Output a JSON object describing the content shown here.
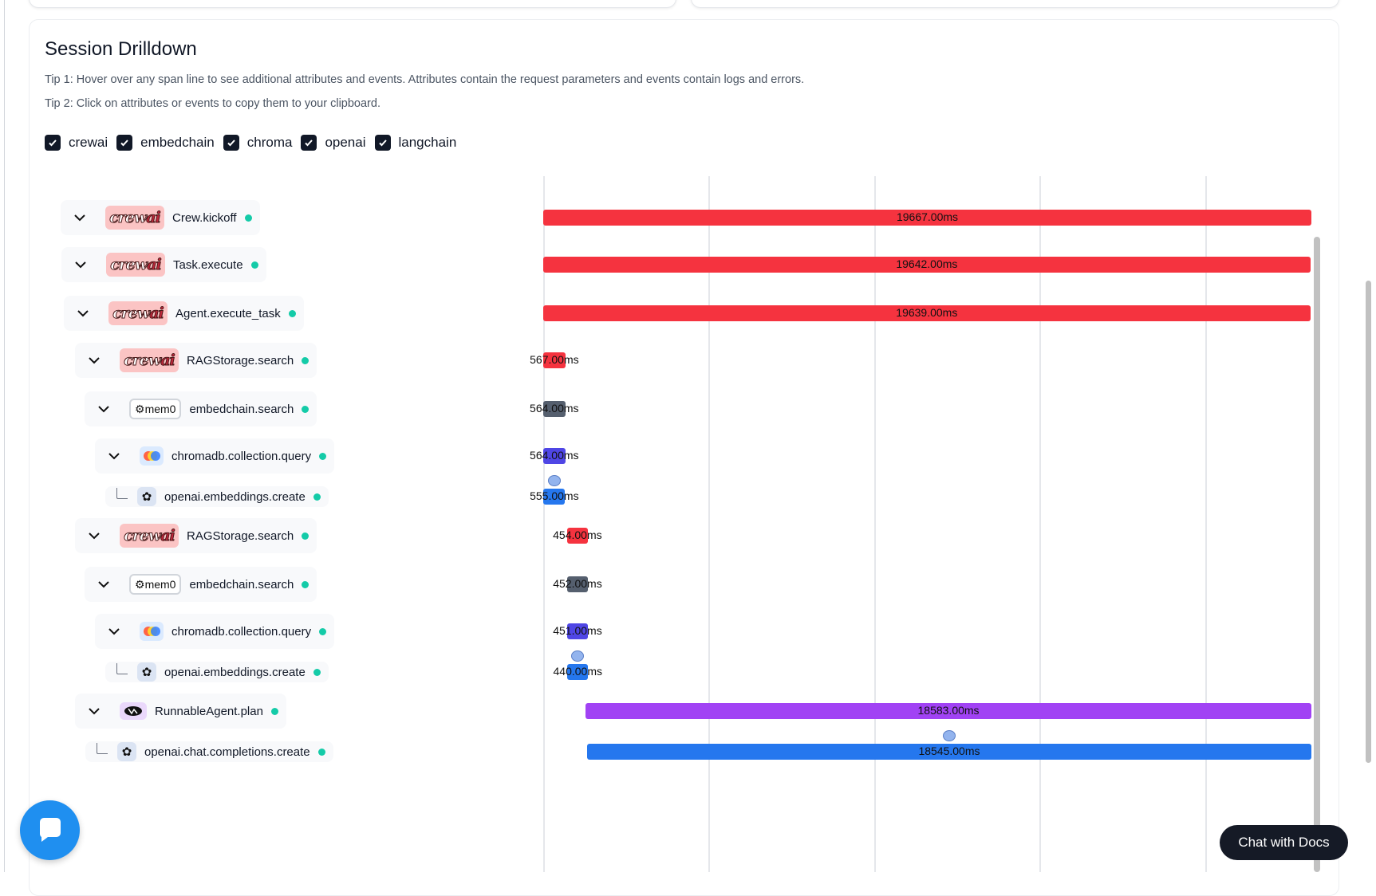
{
  "drilldown": {
    "title": "Session Drilldown",
    "tip1": "Tip 1: Hover over any span line to see additional attributes and events. Attributes contain the request parameters and events contain logs and errors.",
    "tip2": "Tip 2: Click on attributes or events to copy them to your clipboard."
  },
  "filters": [
    {
      "label": "crewai",
      "checked": true
    },
    {
      "label": "embedchain",
      "checked": true
    },
    {
      "label": "chroma",
      "checked": true
    },
    {
      "label": "openai",
      "checked": true
    },
    {
      "label": "langchain",
      "checked": true
    }
  ],
  "colors": {
    "crewai": "#f5333f",
    "embedchain": "#555f6e",
    "chroma": "#4f46e5",
    "openai": "#2577ee",
    "langchain": "#a142f4",
    "status_ok": "#14cba8"
  },
  "spans": [
    {
      "name": "Crew.kickoff",
      "source": "crewai",
      "level": 0,
      "expandable": true,
      "start_ms": 0,
      "duration_label": "19667.00ms",
      "duration_ms": 19667
    },
    {
      "name": "Task.execute",
      "source": "crewai",
      "level": 0,
      "expandable": true,
      "start_ms": 0,
      "duration_label": "19642.00ms",
      "duration_ms": 19642
    },
    {
      "name": "Agent.execute_task",
      "source": "crewai",
      "level": 0,
      "expandable": true,
      "start_ms": 0,
      "duration_label": "19639.00ms",
      "duration_ms": 19639
    },
    {
      "name": "RAGStorage.search",
      "source": "crewai",
      "level": 1,
      "expandable": true,
      "start_ms": 0,
      "duration_label": "567.00ms",
      "duration_ms": 567
    },
    {
      "name": "embedchain.search",
      "source": "embedchain",
      "level": 2,
      "expandable": true,
      "start_ms": 0,
      "duration_label": "564.00ms",
      "duration_ms": 564
    },
    {
      "name": "chromadb.collection.query",
      "source": "chroma",
      "level": 3,
      "expandable": true,
      "start_ms": 0,
      "duration_label": "564.00ms",
      "duration_ms": 564
    },
    {
      "name": "openai.embeddings.create",
      "source": "openai",
      "level": 4,
      "expandable": false,
      "start_ms": 5,
      "duration_label": "555.00ms",
      "duration_ms": 555,
      "has_event": true
    },
    {
      "name": "RAGStorage.search",
      "source": "crewai",
      "level": 1,
      "expandable": true,
      "start_ms": 610,
      "duration_label": "454.00ms",
      "duration_ms": 454
    },
    {
      "name": "embedchain.search",
      "source": "embedchain",
      "level": 2,
      "expandable": true,
      "start_ms": 612,
      "duration_label": "452.00ms",
      "duration_ms": 452
    },
    {
      "name": "chromadb.collection.query",
      "source": "chroma",
      "level": 3,
      "expandable": true,
      "start_ms": 612,
      "duration_label": "451.00ms",
      "duration_ms": 451
    },
    {
      "name": "openai.embeddings.create",
      "source": "openai",
      "level": 4,
      "expandable": false,
      "start_ms": 618,
      "duration_label": "440.00ms",
      "duration_ms": 440,
      "has_event": true
    },
    {
      "name": "RunnableAgent.plan",
      "source": "langchain",
      "level": 1,
      "expandable": true,
      "start_ms": 1084,
      "duration_label": "18583.00ms",
      "duration_ms": 18583
    },
    {
      "name": "openai.chat.completions.create",
      "source": "openai",
      "level": 2,
      "expandable": false,
      "start_ms": 1122,
      "duration_label": "18545.00ms",
      "duration_ms": 18545,
      "has_event": true
    }
  ],
  "icons": {
    "crewai": "crewai-logo",
    "embedchain": "mem0-logo",
    "chroma": "chroma-logo",
    "openai": "openai-logo",
    "langchain": "langchain-logo"
  },
  "mem0_label": "mem0",
  "chat_docs_label": "Chat with Docs"
}
